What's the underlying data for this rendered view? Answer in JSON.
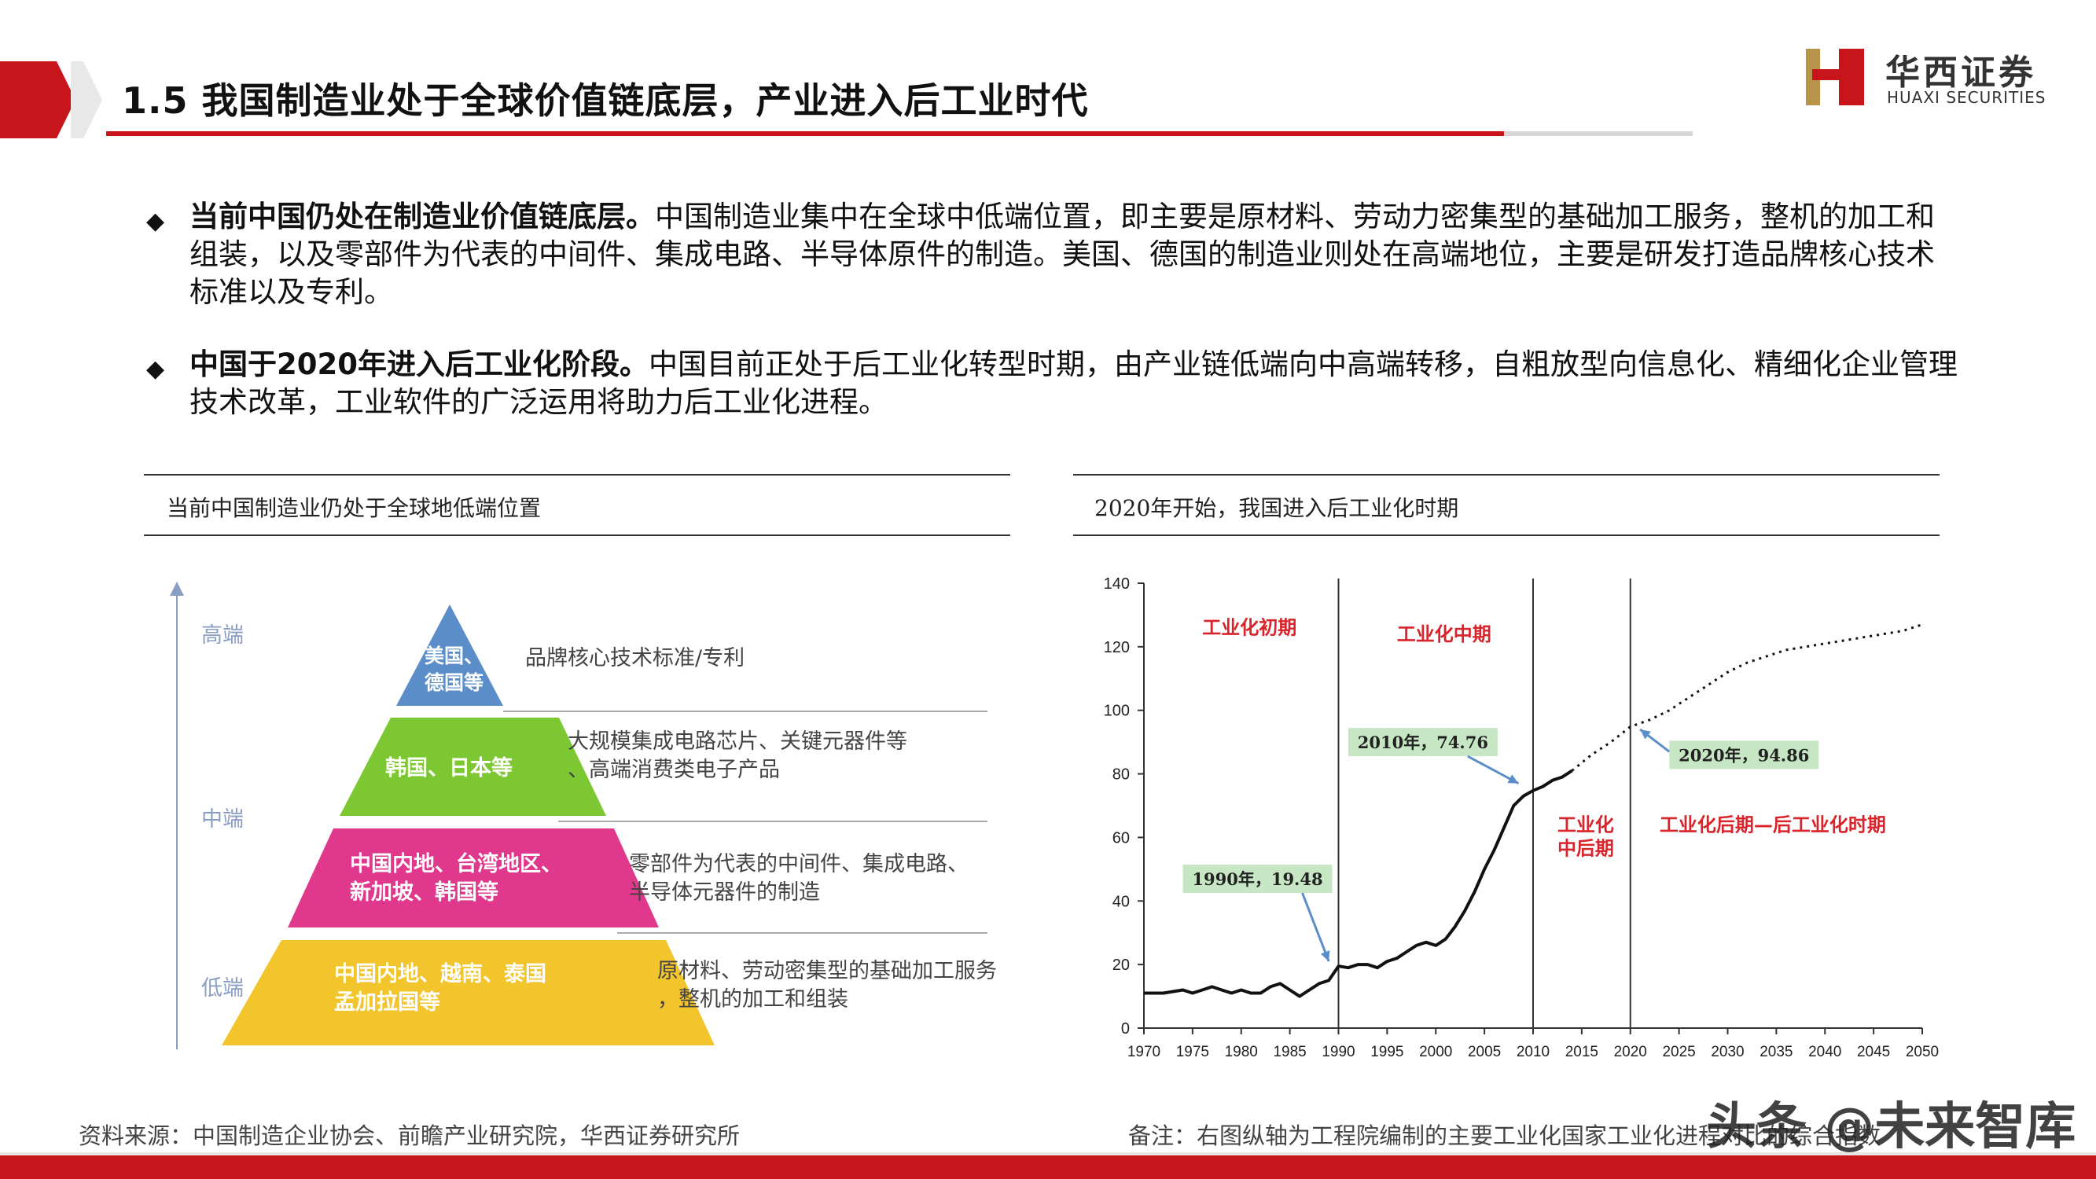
{
  "header": {
    "title": "1.5 我国制造业处于全球价值链底层，产业进入后工业时代",
    "logo_cn": "华西证券",
    "logo_en": "HUAXI SECURITIES",
    "accent": "#c8151c"
  },
  "bullets": [
    {
      "bold": "当前中国仍处在制造业价值链底层。",
      "text": "中国制造业集中在全球中低端位置，即主要是原材料、劳动力密集型的基础加工服务，整机的加工和组装，以及零部件为代表的中间件、集成电路、半导体原件的制造。美国、德国的制造业则处在高端地位，主要是研发打造品牌核心技术标准以及专利。"
    },
    {
      "bold": "中国于2020年进入后工业化阶段。",
      "text": "中国目前正处于后工业化转型时期，由产业链低端向中高端转移，自粗放型向信息化、精细化企业管理技术改革，工业软件的广泛运用将助力后工业化进程。"
    }
  ],
  "left_panel": {
    "title": "当前中国制造业仍处于全球地低端位置",
    "axis_levels": [
      "高端",
      "中端",
      "低端"
    ],
    "tiers": [
      {
        "label": "美国、\n德国等",
        "desc": "品牌核心技术标准/专利",
        "color": "#5b8ec8"
      },
      {
        "label": "韩国、日本等",
        "desc": "大规模集成电路芯片、关键元器件等\n、高端消费类电子产品",
        "color": "#7dc832"
      },
      {
        "label": "中国内地、台湾地区、\n新加坡、韩国等",
        "desc": "零部件为代表的中间件、集成电路、\n半导体元器件的制造",
        "color": "#e0388c"
      },
      {
        "label": "中国内地、越南、泰国\n孟加拉国等",
        "desc": "原材料、劳动密集型的基础加工服务\n，整机的加工和组装",
        "color": "#f2c52c"
      }
    ]
  },
  "right_panel": {
    "title": "2020年开始，我国进入后工业化时期"
  },
  "chart_data": {
    "type": "line",
    "title": "",
    "xlabel": "",
    "ylabel": "",
    "xlim": [
      1970,
      2050
    ],
    "ylim": [
      0,
      140
    ],
    "x_ticks": [
      "1970",
      "1975",
      "1980",
      "1985",
      "1990",
      "1995",
      "2000",
      "2005",
      "2010",
      "2015",
      "2020",
      "2025",
      "2030",
      "2035",
      "2040",
      "2045",
      "2050"
    ],
    "y_ticks": [
      "0",
      "20",
      "40",
      "60",
      "80",
      "100",
      "120",
      "140"
    ],
    "grid": false,
    "line_color": "#111111",
    "series": [
      {
        "name": "",
        "style": "solid",
        "x": [
          1970,
          1972,
          1974,
          1975,
          1976,
          1977,
          1978,
          1979,
          1980,
          1981,
          1982,
          1983,
          1984,
          1985,
          1986,
          1987,
          1988,
          1989,
          1990,
          1991,
          1992,
          1993,
          1994,
          1995,
          1996,
          1997,
          1998,
          1999,
          2000,
          2001,
          2002,
          2003,
          2004,
          2005,
          2006,
          2007,
          2008,
          2009,
          2010,
          2011,
          2012,
          2013,
          2014
        ],
        "y": [
          11,
          11,
          12,
          11,
          12,
          13,
          12,
          11,
          12,
          11,
          11,
          13,
          14,
          12,
          10,
          12,
          14,
          15,
          19.48,
          19,
          20,
          20,
          19,
          21,
          22,
          24,
          26,
          27,
          26,
          28,
          32,
          37,
          43,
          50,
          56,
          63,
          70,
          73,
          74.76,
          76,
          78,
          79,
          81
        ]
      },
      {
        "name": "",
        "style": "dotted",
        "x": [
          2014,
          2016,
          2018,
          2020,
          2022,
          2024,
          2026,
          2028,
          2030,
          2032,
          2034,
          2036,
          2038,
          2040,
          2042,
          2044,
          2046,
          2048,
          2050
        ],
        "y": [
          81,
          86,
          90,
          94.86,
          97,
          100,
          104,
          108,
          112,
          115,
          117,
          119,
          120,
          121,
          122,
          123,
          124,
          125,
          127
        ]
      }
    ],
    "phases": [
      {
        "label": "工业化初期",
        "x_from": 1970,
        "x_to": 1990
      },
      {
        "label": "工业化中期",
        "x_from": 1990,
        "x_to": 2010
      },
      {
        "label": "工业化\n中后期",
        "x_from": 2010,
        "x_to": 2020
      },
      {
        "label": "工业化后期—后工业化时期",
        "x_from": 2020,
        "x_to": 2050
      }
    ],
    "phase_boundaries": [
      1990,
      2010,
      2020
    ],
    "annotations": [
      {
        "text": "1990年，19.48",
        "x": 1990,
        "y": 19.48
      },
      {
        "text": "2010年，74.76",
        "x": 2010,
        "y": 74.76
      },
      {
        "text": "2020年，94.86",
        "x": 2020,
        "y": 94.86
      }
    ],
    "phase_label_color": "#d9242b",
    "annotation_bg": "#c6e6c4"
  },
  "footer": {
    "source": "资料来源：中国制造企业协会、前瞻产业研究院，华西证券研究所",
    "note": "备注：右图纵轴为工程院编制的主要工业化国家工业化进程对比的综合指数",
    "watermark": "头条 @未来智库"
  }
}
